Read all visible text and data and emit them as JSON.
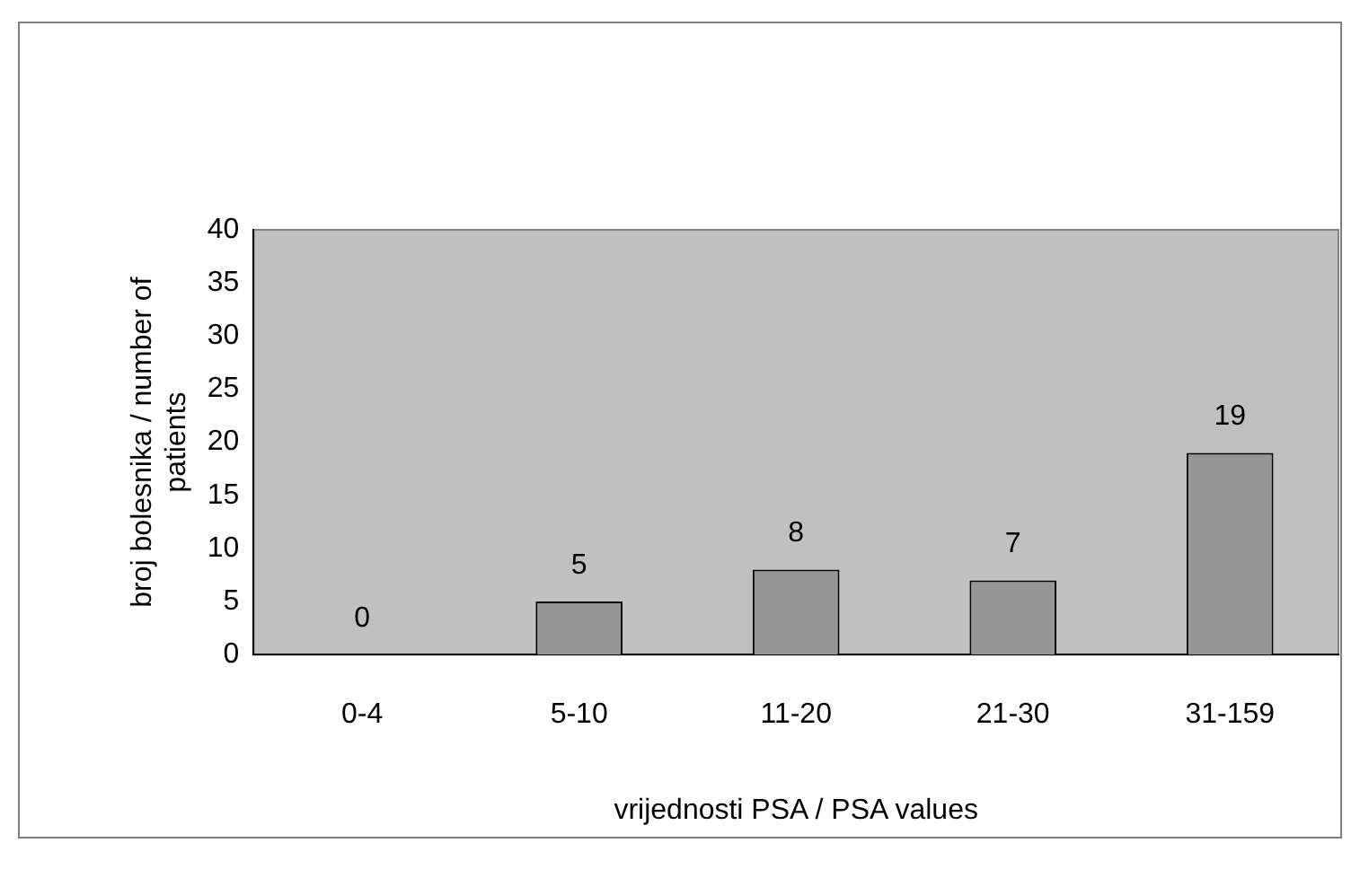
{
  "chart_data": {
    "type": "bar",
    "categories": [
      "0-4",
      "5-10",
      "11-20",
      "21-30",
      "31-159"
    ],
    "values": [
      0,
      5,
      8,
      7,
      19
    ],
    "color": "#969696",
    "xlabel": "vrijednosti PSA / PSA values",
    "ylabel": "broj bolesnika / number of patients",
    "ylim": [
      0,
      40
    ],
    "yticks": [
      0,
      5,
      10,
      15,
      20,
      25,
      30,
      35,
      40
    ],
    "grid": false,
    "legend": false,
    "data_labels": true
  }
}
